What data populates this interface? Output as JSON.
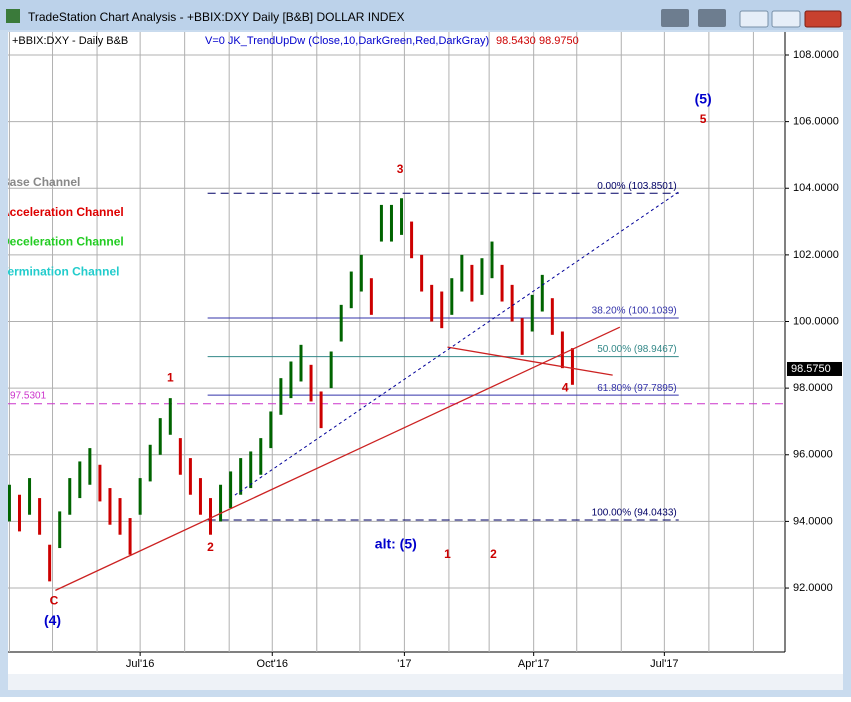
{
  "window": {
    "title": "TradeStation Chart Analysis - +BBIX:DXY Daily [B&B] DOLLAR INDEX"
  },
  "chart_data": {
    "type": "ohlc",
    "header": {
      "symbol": "+BBIX:DXY - Daily  B&B",
      "indicator": "V=0  JK_TrendUpDw  (Close,10,DarkGreen,Red,DarkGray)",
      "value1": "98.5430",
      "value2": "98.9750"
    },
    "x": [
      91,
      98,
      105,
      112,
      119,
      126,
      133,
      140,
      147,
      154,
      161,
      168,
      175,
      182,
      189,
      196,
      203,
      210,
      217,
      224,
      231,
      238,
      245,
      252,
      259,
      266,
      273,
      280,
      287,
      294,
      301,
      308,
      315,
      322,
      329,
      336,
      343,
      350,
      357,
      364,
      371,
      378,
      385,
      392,
      399,
      406,
      413,
      420,
      427,
      434,
      441,
      448,
      455,
      462,
      469,
      476,
      483
    ],
    "high": [
      95.1,
      94.8,
      95.3,
      94.7,
      93.3,
      94.3,
      95.3,
      95.8,
      96.2,
      95.7,
      95.0,
      94.7,
      94.1,
      95.3,
      96.3,
      97.1,
      97.7,
      96.5,
      95.9,
      95.3,
      94.7,
      95.1,
      95.5,
      95.9,
      96.1,
      96.5,
      97.3,
      98.3,
      98.8,
      99.3,
      98.7,
      97.9,
      99.1,
      100.5,
      101.5,
      102.0,
      101.3,
      103.5,
      103.5,
      103.7,
      103.0,
      102.0,
      101.1,
      100.9,
      101.3,
      102.0,
      101.7,
      101.9,
      102.4,
      101.7,
      101.1,
      100.1,
      100.8,
      101.4,
      100.7,
      99.7,
      99.2
    ],
    "low": [
      94.0,
      93.7,
      94.2,
      93.6,
      92.2,
      93.2,
      94.2,
      94.7,
      95.1,
      94.6,
      93.9,
      93.6,
      93.0,
      94.2,
      95.2,
      96.0,
      96.6,
      95.4,
      94.8,
      94.2,
      93.6,
      94.0,
      94.4,
      94.8,
      95.0,
      95.4,
      96.2,
      97.2,
      97.7,
      98.2,
      97.6,
      96.8,
      98.0,
      99.4,
      100.4,
      100.9,
      100.2,
      102.4,
      102.4,
      102.6,
      101.9,
      100.9,
      100.0,
      99.8,
      100.2,
      100.9,
      100.6,
      100.8,
      101.3,
      100.6,
      100.0,
      99.0,
      99.7,
      100.3,
      99.6,
      98.6,
      98.1
    ],
    "up_color": "#006400",
    "down_color": "#cc0000",
    "xlim": [
      90,
      631
    ],
    "ylim": [
      90.08,
      108.69
    ],
    "xticks": [
      {
        "value": 182,
        "label": "Jul'16"
      },
      {
        "value": 274,
        "label": "Oct'16"
      },
      {
        "value": 366,
        "label": "'17"
      },
      {
        "value": 456,
        "label": "Apr'17"
      },
      {
        "value": 547,
        "label": "Jul'17"
      }
    ],
    "xgrid": [
      91,
      121,
      152,
      182,
      213,
      244,
      274,
      305,
      335,
      366,
      397,
      425,
      456,
      486,
      517,
      547,
      578,
      609
    ],
    "yticks": [
      {
        "value": 92,
        "label": "92.0000"
      },
      {
        "value": 94,
        "label": "94.0000"
      },
      {
        "value": 96,
        "label": "96.0000"
      },
      {
        "value": 98,
        "label": "98.0000"
      },
      {
        "value": 100,
        "label": "100.0000"
      },
      {
        "value": 102,
        "label": "102.0000"
      },
      {
        "value": 104,
        "label": "104.0000"
      },
      {
        "value": 106,
        "label": "106.0000"
      },
      {
        "value": 108,
        "label": "108.0000"
      }
    ],
    "grid": true,
    "last_price": {
      "value": 98.575,
      "label": "98.5750"
    },
    "support": {
      "value": 97.5301,
      "label": "97.5301",
      "color": "#cc33cc"
    },
    "fib_x": [
      229,
      557
    ],
    "fib": [
      {
        "value": 103.8501,
        "label": "0.00% (103.8501)",
        "color": "#000066"
      },
      {
        "value": 100.1039,
        "label": "38.20% (100.1039)",
        "color": "#3333aa"
      },
      {
        "value": 98.9467,
        "label": "50.00% (98.9467)",
        "color": "#338888"
      },
      {
        "value": 97.7895,
        "label": "61.80% (97.7895)",
        "color": "#3333aa"
      },
      {
        "value": 94.0433,
        "label": "100.00% (94.0433)",
        "color": "#000066"
      }
    ],
    "trendlines": [
      {
        "x": [
          123,
          516
        ],
        "y": [
          91.93,
          99.83
        ],
        "color": "#cc2222",
        "dash": false
      },
      {
        "x": [
          396,
          511
        ],
        "y": [
          99.23,
          98.39
        ],
        "color": "#cc2222",
        "dash": false
      },
      {
        "x": [
          248,
          557
        ],
        "y": [
          94.79,
          103.89
        ],
        "color": "#000099",
        "dash": true
      }
    ],
    "channels": [
      {
        "text": "Base Channel",
        "color": "#888888"
      },
      {
        "text": "Acceleration Channel",
        "color": "#dd0000"
      },
      {
        "text": "Deceleration Channel",
        "color": "#22cc22"
      },
      {
        "text": "Termination Channel",
        "color": "#22cccc"
      }
    ],
    "annotations": [
      {
        "text": "3",
        "x": 363,
        "y": 104.55,
        "color": "#cc0000"
      },
      {
        "text": "1",
        "x": 203,
        "y": 98.3,
        "color": "#cc0000"
      },
      {
        "text": "2",
        "x": 231,
        "y": 93.2,
        "color": "#cc0000"
      },
      {
        "text": "C",
        "x": 122,
        "y": 91.6,
        "color": "#cc0000"
      },
      {
        "text": "(4)",
        "x": 121,
        "y": 91.0,
        "color": "#0000cc"
      },
      {
        "text": "(5)",
        "x": 574,
        "y": 106.65,
        "color": "#0000cc"
      },
      {
        "text": "5",
        "x": 574,
        "y": 106.05,
        "color": "#cc0000"
      },
      {
        "text": "4",
        "x": 478,
        "y": 98.0,
        "color": "#cc0000"
      },
      {
        "text": "alt: (5)",
        "x": 360,
        "y": 93.3,
        "color": "#0000cc"
      },
      {
        "text": "1",
        "x": 396,
        "y": 93.0,
        "color": "#cc0000"
      },
      {
        "text": "2",
        "x": 428,
        "y": 93.0,
        "color": "#cc0000"
      }
    ]
  }
}
